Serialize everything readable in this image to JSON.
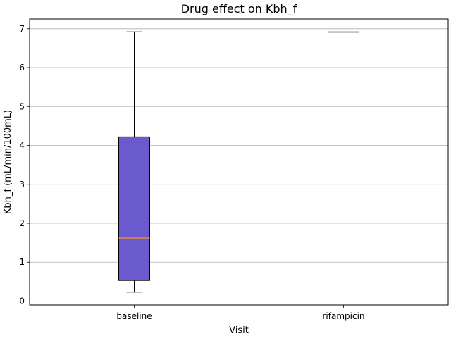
{
  "chart_data": {
    "type": "box",
    "title": "Drug effect on Kbh_f",
    "xlabel": "Visit",
    "ylabel": "Kbh_f (mL/min/100mL)",
    "categories": [
      "baseline",
      "rifampicin"
    ],
    "ylim": [
      -0.1,
      7.25
    ],
    "yticks": [
      0,
      1,
      2,
      3,
      4,
      5,
      6,
      7
    ],
    "grid": "y",
    "box_color": "#6a5acd",
    "median_color": "#e8883a",
    "boxes": [
      {
        "category": "baseline",
        "whisker_low": 0.23,
        "q1": 0.53,
        "median": 1.62,
        "q3": 4.22,
        "whisker_high": 6.92
      },
      {
        "category": "rifampicin",
        "whisker_low": 6.92,
        "q1": 6.92,
        "median": 6.92,
        "q3": 6.92,
        "whisker_high": 6.92
      }
    ]
  }
}
